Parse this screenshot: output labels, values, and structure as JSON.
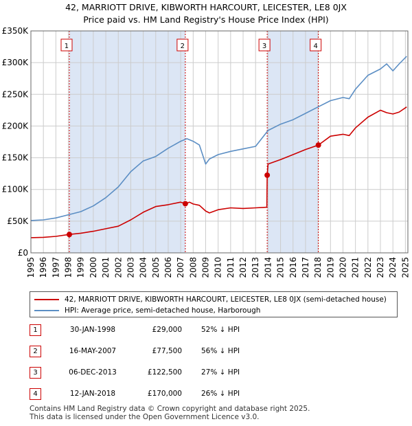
{
  "title": "42, MARRIOTT DRIVE, KIBWORTH HARCOURT, LEICESTER, LE8 0JX",
  "subtitle": "Price paid vs. HM Land Registry's House Price Index (HPI)",
  "colors": {
    "price": "#cc0000",
    "hpi": "#5b8ec4",
    "shade": "#dce6f5",
    "grid": "#cccccc",
    "vline": "#cc0000"
  },
  "chart_data": {
    "type": "line",
    "title": "42, MARRIOTT DRIVE, KIBWORTH HARCOURT, LEICESTER, LE8 0JX",
    "subtitle": "Price paid vs. HM Land Registry's House Price Index (HPI)",
    "xlabel": "",
    "ylabel": "",
    "xlim": [
      1995,
      2025.2
    ],
    "ylim": [
      0,
      350000
    ],
    "x_ticks": [
      1995,
      1996,
      1997,
      1998,
      1999,
      2000,
      2001,
      2002,
      2003,
      2004,
      2005,
      2006,
      2007,
      2008,
      2009,
      2010,
      2011,
      2012,
      2013,
      2014,
      2015,
      2016,
      2017,
      2018,
      2019,
      2020,
      2021,
      2022,
      2023,
      2024,
      2025
    ],
    "y_ticks": [
      0,
      50000,
      100000,
      150000,
      200000,
      250000,
      300000,
      350000
    ],
    "y_tick_labels": [
      "£0",
      "£50K",
      "£100K",
      "£150K",
      "£200K",
      "£250K",
      "£300K",
      "£350K"
    ],
    "grid": true,
    "series": [
      {
        "name": "42, MARRIOTT DRIVE, KIBWORTH HARCOURT, LEICESTER, LE8 0JX (semi-detached house)",
        "color": "#cc0000",
        "x": [
          1995,
          1996,
          1997,
          1998.08,
          1999,
          2000,
          2001,
          2002,
          2003,
          2004,
          2005,
          2006,
          2007,
          2007.37,
          2007.7,
          2008,
          2008.5,
          2009,
          2009.3,
          2010,
          2011,
          2012,
          2013,
          2013.9,
          2013.93,
          2014,
          2015,
          2016,
          2017,
          2018.03,
          2019,
          2020,
          2020.5,
          2021,
          2022,
          2023,
          2023.5,
          2024,
          2024.5,
          2025.1
        ],
        "y": [
          24000,
          24500,
          26000,
          29000,
          31000,
          34000,
          38000,
          42000,
          52000,
          64000,
          73000,
          76000,
          80000,
          77500,
          80000,
          77000,
          75000,
          66000,
          63000,
          68000,
          71000,
          70000,
          71000,
          72000,
          122500,
          140000,
          147000,
          155000,
          163000,
          170000,
          184000,
          187000,
          185000,
          197000,
          214000,
          225000,
          221000,
          219000,
          222000,
          230000
        ]
      },
      {
        "name": "HPI: Average price, semi-detached house, Harborough",
        "color": "#5b8ec4",
        "x": [
          1995,
          1996,
          1997,
          1998,
          1999,
          2000,
          2001,
          2002,
          2003,
          2004,
          2005,
          2006,
          2007,
          2007.5,
          2008,
          2008.5,
          2009,
          2009.3,
          2010,
          2011,
          2012,
          2013,
          2014,
          2015,
          2016,
          2017,
          2018,
          2019,
          2020,
          2020.5,
          2021,
          2022,
          2023,
          2023.5,
          2024,
          2024.5,
          2025.1
        ],
        "y": [
          51000,
          52000,
          55000,
          60000,
          65000,
          74000,
          87000,
          104000,
          128000,
          145000,
          152000,
          165000,
          176000,
          180000,
          176000,
          170000,
          140000,
          148000,
          155000,
          160000,
          164000,
          168000,
          193000,
          203000,
          210000,
          220000,
          230000,
          240000,
          245000,
          243000,
          258000,
          280000,
          290000,
          298000,
          287000,
          298000,
          310000
        ]
      }
    ],
    "markers": [
      {
        "label": "1",
        "x": 1998.08,
        "y": 29000
      },
      {
        "label": "2",
        "x": 2007.37,
        "y": 77500
      },
      {
        "label": "3",
        "x": 2013.93,
        "y": 122500
      },
      {
        "label": "4",
        "x": 2018.03,
        "y": 170000
      }
    ],
    "shaded_ranges": [
      [
        1998.08,
        2007.37
      ],
      [
        2013.93,
        2018.03
      ]
    ]
  },
  "legend": {
    "items": [
      {
        "label": "42, MARRIOTT DRIVE, KIBWORTH HARCOURT, LEICESTER, LE8 0JX (semi-detached house)",
        "color": "#cc0000"
      },
      {
        "label": "HPI: Average price, semi-detached house, Harborough",
        "color": "#5b8ec4"
      }
    ]
  },
  "transactions": [
    {
      "num": "1",
      "date": "30-JAN-1998",
      "price": "£29,000",
      "hpi": "52% ↓ HPI"
    },
    {
      "num": "2",
      "date": "16-MAY-2007",
      "price": "£77,500",
      "hpi": "56% ↓ HPI"
    },
    {
      "num": "3",
      "date": "06-DEC-2013",
      "price": "£122,500",
      "hpi": "27% ↓ HPI"
    },
    {
      "num": "4",
      "date": "12-JAN-2018",
      "price": "£170,000",
      "hpi": "26% ↓ HPI"
    }
  ],
  "footer": {
    "line1": "Contains HM Land Registry data © Crown copyright and database right 2025.",
    "line2": "This data is licensed under the Open Government Licence v3.0."
  }
}
